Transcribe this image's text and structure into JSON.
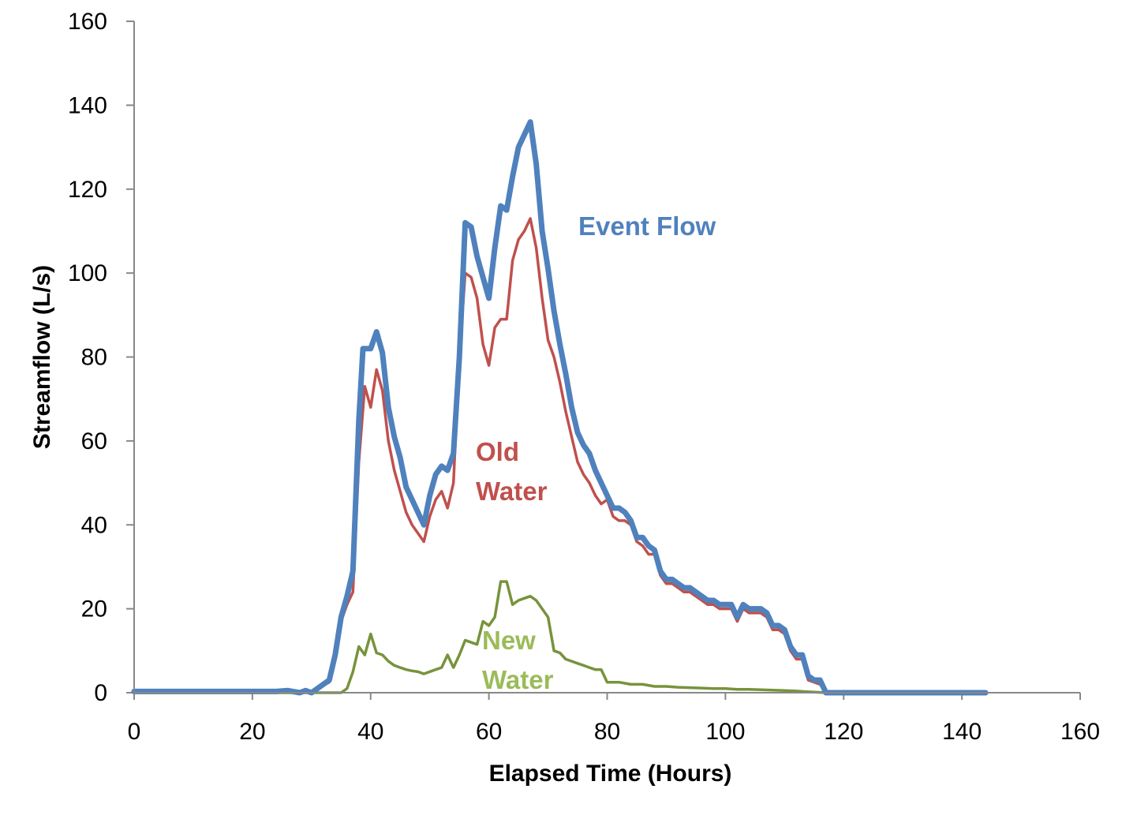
{
  "chart_data": {
    "type": "line",
    "title": "",
    "xlabel": "Elapsed Time (Hours)",
    "ylabel": "Streamflow (L/s)",
    "xlim": [
      0,
      160
    ],
    "ylim": [
      0,
      160
    ],
    "xticks": [
      0,
      20,
      40,
      60,
      80,
      100,
      120,
      140,
      160
    ],
    "yticks": [
      0,
      20,
      40,
      60,
      80,
      100,
      120,
      140,
      160
    ],
    "grid": false,
    "legend": "none",
    "series": [
      {
        "name": "Event Flow",
        "color": "#4F81BD",
        "label_lines": [
          "Event Flow"
        ],
        "points": [
          [
            0,
            0.3
          ],
          [
            24,
            0.3
          ],
          [
            26,
            0.5
          ],
          [
            28,
            0
          ],
          [
            29,
            0.5
          ],
          [
            30,
            0
          ],
          [
            31,
            1
          ],
          [
            33,
            3
          ],
          [
            34,
            9
          ],
          [
            35,
            18
          ],
          [
            36,
            23
          ],
          [
            37,
            29
          ],
          [
            38,
            65
          ],
          [
            38.7,
            82
          ],
          [
            40,
            82
          ],
          [
            41,
            86
          ],
          [
            42,
            81
          ],
          [
            43,
            68
          ],
          [
            44,
            61
          ],
          [
            45,
            56
          ],
          [
            46,
            49
          ],
          [
            47,
            46
          ],
          [
            48,
            43
          ],
          [
            49,
            40
          ],
          [
            50,
            47
          ],
          [
            51,
            52
          ],
          [
            52,
            54
          ],
          [
            53,
            53
          ],
          [
            54,
            57
          ],
          [
            55,
            80
          ],
          [
            56,
            112
          ],
          [
            57,
            111
          ],
          [
            58,
            104
          ],
          [
            59,
            99
          ],
          [
            60,
            94
          ],
          [
            61,
            106
          ],
          [
            62,
            116
          ],
          [
            63,
            115
          ],
          [
            64,
            123
          ],
          [
            65,
            130
          ],
          [
            66,
            133
          ],
          [
            67,
            136
          ],
          [
            68,
            126
          ],
          [
            69,
            110
          ],
          [
            70,
            101
          ],
          [
            71,
            91
          ],
          [
            72,
            83
          ],
          [
            73,
            76
          ],
          [
            74,
            68
          ],
          [
            75,
            62
          ],
          [
            76,
            59
          ],
          [
            77,
            57
          ],
          [
            78,
            53
          ],
          [
            79,
            50
          ],
          [
            80,
            47
          ],
          [
            81,
            44
          ],
          [
            82,
            44
          ],
          [
            83,
            43
          ],
          [
            84,
            41
          ],
          [
            85,
            37
          ],
          [
            86,
            37
          ],
          [
            87,
            35
          ],
          [
            88,
            34
          ],
          [
            89,
            29
          ],
          [
            90,
            27
          ],
          [
            91,
            27
          ],
          [
            92,
            26
          ],
          [
            93,
            25
          ],
          [
            94,
            25
          ],
          [
            95,
            24
          ],
          [
            96,
            23
          ],
          [
            97,
            22
          ],
          [
            98,
            22
          ],
          [
            99,
            21
          ],
          [
            100,
            21
          ],
          [
            101,
            21
          ],
          [
            102,
            18
          ],
          [
            103,
            21
          ],
          [
            104,
            20
          ],
          [
            105,
            20
          ],
          [
            106,
            20
          ],
          [
            107,
            19
          ],
          [
            108,
            16
          ],
          [
            109,
            16
          ],
          [
            110,
            15
          ],
          [
            111,
            11
          ],
          [
            112,
            9
          ],
          [
            113,
            9
          ],
          [
            114,
            4
          ],
          [
            115,
            3
          ],
          [
            116,
            3
          ],
          [
            117,
            0
          ],
          [
            144,
            0
          ]
        ]
      },
      {
        "name": "Old Water",
        "color": "#C0504D",
        "label_lines": [
          "Old",
          "Water"
        ],
        "points": [
          [
            30,
            0
          ],
          [
            31,
            1
          ],
          [
            33,
            2.5
          ],
          [
            34,
            8
          ],
          [
            35,
            17
          ],
          [
            36,
            21
          ],
          [
            37,
            24
          ],
          [
            38,
            55
          ],
          [
            39,
            73
          ],
          [
            40,
            68
          ],
          [
            41,
            77
          ],
          [
            42,
            72
          ],
          [
            43,
            60
          ],
          [
            44,
            53
          ],
          [
            45,
            48
          ],
          [
            46,
            43
          ],
          [
            47,
            40
          ],
          [
            48,
            38
          ],
          [
            49,
            36
          ],
          [
            50,
            42
          ],
          [
            51,
            46
          ],
          [
            52,
            48
          ],
          [
            53,
            44
          ],
          [
            54,
            50
          ],
          [
            55,
            80
          ],
          [
            56,
            100
          ],
          [
            57,
            99
          ],
          [
            58,
            94
          ],
          [
            59,
            83
          ],
          [
            60,
            78
          ],
          [
            61,
            87
          ],
          [
            62,
            89
          ],
          [
            63,
            89
          ],
          [
            64,
            103
          ],
          [
            65,
            108
          ],
          [
            66,
            110
          ],
          [
            67,
            113
          ],
          [
            68,
            106
          ],
          [
            69,
            94
          ],
          [
            70,
            84
          ],
          [
            71,
            80
          ],
          [
            72,
            74
          ],
          [
            73,
            67
          ],
          [
            74,
            61
          ],
          [
            75,
            55
          ],
          [
            76,
            52
          ],
          [
            77,
            50
          ],
          [
            78,
            47
          ],
          [
            79,
            45
          ],
          [
            80,
            46
          ],
          [
            81,
            42
          ],
          [
            82,
            41
          ],
          [
            83,
            41
          ],
          [
            84,
            40
          ],
          [
            85,
            36
          ],
          [
            86,
            35
          ],
          [
            87,
            33
          ],
          [
            88,
            33
          ],
          [
            89,
            28
          ],
          [
            90,
            26
          ],
          [
            91,
            26
          ],
          [
            92,
            25
          ],
          [
            93,
            24
          ],
          [
            94,
            24
          ],
          [
            95,
            23
          ],
          [
            96,
            22
          ],
          [
            97,
            21
          ],
          [
            98,
            21
          ],
          [
            99,
            20
          ],
          [
            100,
            20
          ],
          [
            101,
            20
          ],
          [
            102,
            17
          ],
          [
            103,
            20
          ],
          [
            104,
            19
          ],
          [
            105,
            19
          ],
          [
            106,
            19
          ],
          [
            107,
            18
          ],
          [
            108,
            15
          ],
          [
            109,
            15
          ],
          [
            110,
            14
          ],
          [
            111,
            10
          ],
          [
            112,
            8
          ],
          [
            113,
            8
          ],
          [
            114,
            3
          ],
          [
            115,
            2.5
          ],
          [
            116,
            2
          ],
          [
            117,
            0
          ]
        ]
      },
      {
        "name": "New Water",
        "color": "#77933C",
        "label_lines": [
          "New",
          "Water"
        ],
        "label_color": "#9BBB59",
        "points": [
          [
            0,
            0
          ],
          [
            35,
            0
          ],
          [
            36,
            1
          ],
          [
            37,
            5
          ],
          [
            38,
            11
          ],
          [
            39,
            9
          ],
          [
            40,
            14
          ],
          [
            41,
            9.5
          ],
          [
            42,
            9
          ],
          [
            43,
            7.5
          ],
          [
            44,
            6.5
          ],
          [
            45,
            6
          ],
          [
            46,
            5.5
          ],
          [
            47,
            5.2
          ],
          [
            48,
            5
          ],
          [
            49,
            4.5
          ],
          [
            50,
            5
          ],
          [
            51,
            5.5
          ],
          [
            52,
            6
          ],
          [
            53,
            9
          ],
          [
            54,
            6
          ],
          [
            55,
            9
          ],
          [
            56,
            12.5
          ],
          [
            57,
            12
          ],
          [
            58,
            11.5
          ],
          [
            59,
            17
          ],
          [
            60,
            16
          ],
          [
            61,
            18
          ],
          [
            62,
            26.5
          ],
          [
            63,
            26.5
          ],
          [
            64,
            21
          ],
          [
            65,
            22
          ],
          [
            66,
            22.5
          ],
          [
            67,
            23
          ],
          [
            68,
            22
          ],
          [
            69,
            20
          ],
          [
            70,
            18
          ],
          [
            71,
            10
          ],
          [
            72,
            9.5
          ],
          [
            73,
            8
          ],
          [
            74,
            7.5
          ],
          [
            75,
            7
          ],
          [
            76,
            6.5
          ],
          [
            77,
            6
          ],
          [
            78,
            5.5
          ],
          [
            79,
            5.5
          ],
          [
            80,
            2.5
          ],
          [
            82,
            2.5
          ],
          [
            84,
            2
          ],
          [
            86,
            2
          ],
          [
            88,
            1.5
          ],
          [
            90,
            1.5
          ],
          [
            92,
            1.3
          ],
          [
            94,
            1.2
          ],
          [
            96,
            1.1
          ],
          [
            98,
            1
          ],
          [
            100,
            1
          ],
          [
            102,
            0.8
          ],
          [
            104,
            0.8
          ],
          [
            106,
            0.7
          ],
          [
            108,
            0.6
          ],
          [
            110,
            0.5
          ],
          [
            112,
            0.4
          ],
          [
            114,
            0.2
          ],
          [
            117,
            0
          ],
          [
            144,
            0
          ]
        ]
      }
    ]
  }
}
